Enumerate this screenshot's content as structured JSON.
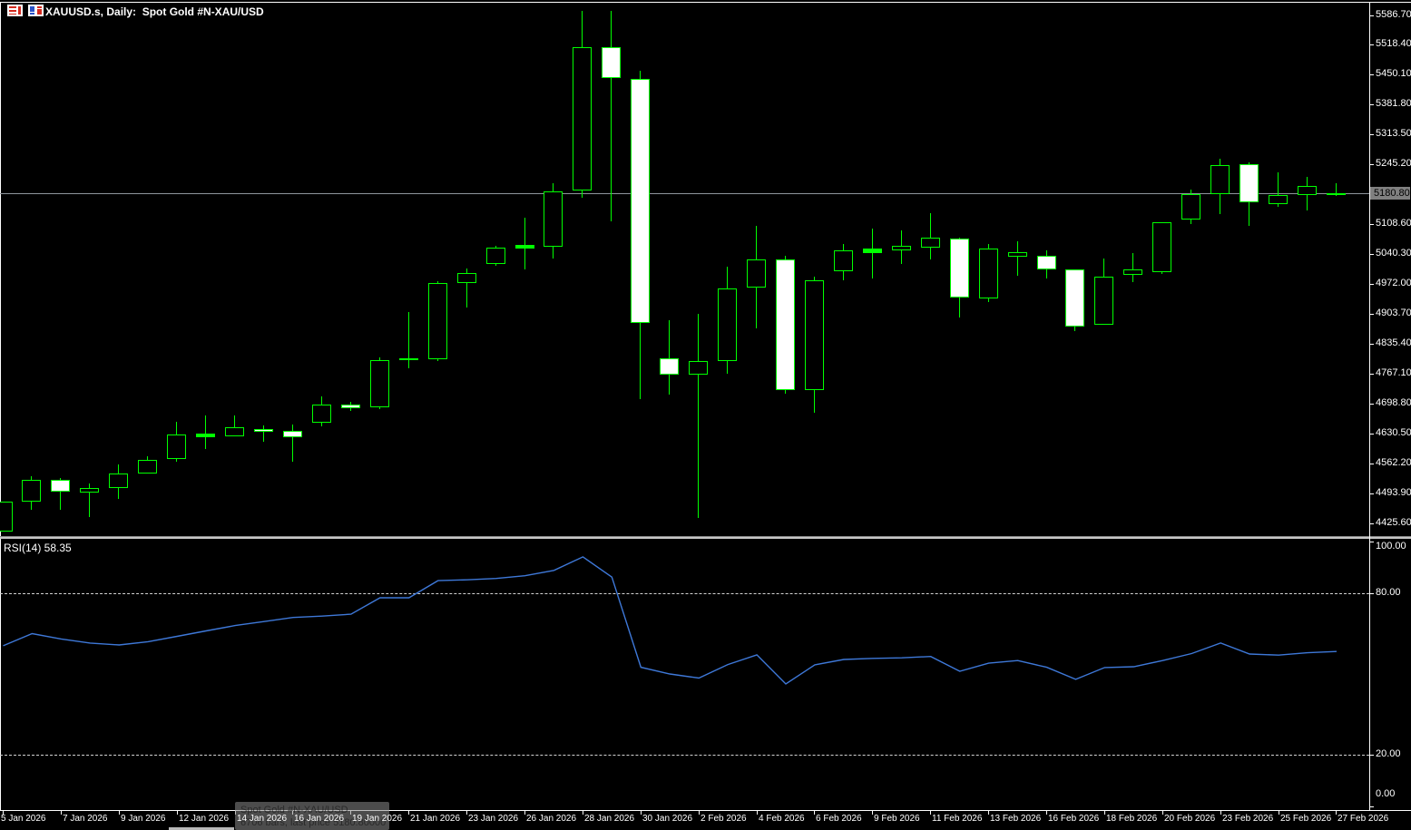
{
  "header": {
    "title": "XAUUSD.s, Daily:  Spot Gold #N-XAU/USD"
  },
  "price_axis": {
    "labels": [
      "5586.70",
      "5518.40",
      "5450.10",
      "5381.80",
      "5313.50",
      "5245.20",
      "5108.60",
      "5040.30",
      "4972.00",
      "4903.70",
      "4835.40",
      "4767.10",
      "4698.80",
      "4630.50",
      "4562.20",
      "4493.90",
      "4425.60"
    ],
    "current_price": "5180.80"
  },
  "time_axis": {
    "labels": [
      "5 Jan 2026",
      "7 Jan 2026",
      "9 Jan 2026",
      "12 Jan 2026",
      "14 Jan 2026",
      "16 Jan 2026",
      "19 Jan 2026",
      "21 Jan 2026",
      "23 Jan 2026",
      "26 Jan 2026",
      "28 Jan 2026",
      "30 Jan 2026",
      "2 Feb 2026",
      "4 Feb 2026",
      "6 Feb 2026",
      "9 Feb 2026",
      "11 Feb 2026",
      "13 Feb 2026",
      "16 Feb 2026",
      "18 Feb 2026",
      "20 Feb 2026",
      "23 Feb 2026",
      "25 Feb 2026",
      "27 Feb 2026"
    ]
  },
  "indicator": {
    "label": "RSI(14) 58.35",
    "levels": [
      {
        "value": 100,
        "label": "100.00"
      },
      {
        "value": 80,
        "label": "80.00"
      },
      {
        "value": 20,
        "label": "20.00"
      },
      {
        "value": 0,
        "label": "0.00"
      }
    ],
    "dashed_levels": [
      80,
      20
    ]
  },
  "tooltip": {
    "line1": "Spot Gold #N-XAU/USD",
    "line2": "6706 bars, last price 5180.80000"
  },
  "colors": {
    "background": "#000000",
    "bull_outline": "#00FF00",
    "bear_fill": "#FFFFFF",
    "rsi_line": "#3E78D8",
    "level_dashed": "#D2D2D2",
    "current_price_line": "#8F959C",
    "current_price_bg": "#808080",
    "axis_text": "#FFFFFF"
  },
  "chart_data": {
    "type": "candlestick",
    "title": "Spot Gold #N-XAU/USD",
    "symbol": "XAUUSD.s",
    "timeframe": "Daily",
    "last_price": 5180.8,
    "ylim_price": [
      4400,
      5616
    ],
    "ylim_rsi": [
      0,
      100
    ],
    "rsi_overbought": 80,
    "rsi_oversold": 20,
    "candles": [
      [
        4407.0,
        4477.3,
        4407.0,
        4477.3
      ],
      [
        4473.4,
        4533.6,
        4457.0,
        4525.0
      ],
      [
        4525.0,
        4529.5,
        4457.0,
        4496.1
      ],
      [
        4494.0,
        4516.8,
        4438.2,
        4506.4
      ],
      [
        4504.4,
        4560.2,
        4479.5,
        4539.5
      ],
      [
        4539.5,
        4578.8,
        4539.5,
        4570.6
      ],
      [
        4570.6,
        4657.5,
        4566.4,
        4628.5
      ],
      [
        4622.3,
        4672.0,
        4593.4,
        4630.6
      ],
      [
        4624.4,
        4672.0,
        4624.4,
        4645.1
      ],
      [
        4641.0,
        4649.2,
        4609.9,
        4634.7
      ],
      [
        4636.8,
        4651.3,
        4566.4,
        4622.3
      ],
      [
        4653.4,
        4715.4,
        4645.1,
        4696.8
      ],
      [
        4696.8,
        4703.0,
        4680.3,
        4688.5
      ],
      [
        4690.5,
        4804.4,
        4684.4,
        4798.2
      ],
      [
        4796.1,
        4907.9,
        4779.5,
        4802.3
      ],
      [
        4798.2,
        4978.3,
        4796.1,
        4974.1
      ],
      [
        4974.1,
        5007.2,
        4918.2,
        4996.9
      ],
      [
        5015.5,
        5059.0,
        5011.4,
        5054.8
      ],
      [
        5050.7,
        5123.1,
        5003.1,
        5061.0
      ],
      [
        5056.9,
        5201.8,
        5030.0,
        5183.2
      ],
      [
        5183.2,
        5595.0,
        5166.6,
        5512.2
      ],
      [
        5512.2,
        5595.0,
        5114.8,
        5439.8
      ],
      [
        5439.8,
        5458.4,
        4707.1,
        4881.0
      ],
      [
        4802.3,
        4889.3,
        4719.5,
        4763.0
      ],
      [
        4763.0,
        4903.7,
        4436.1,
        4796.1
      ],
      [
        4796.1,
        5011.4,
        4767.1,
        4963.7
      ],
      [
        4963.7,
        5106.5,
        4870.6,
        5027.9
      ],
      [
        5027.9,
        5038.2,
        4722.0,
        4727.8
      ],
      [
        4727.8,
        4988.6,
        4676.1,
        4980.3
      ],
      [
        4999.0,
        5063.1,
        4980.3,
        5048.6
      ],
      [
        5042.4,
        5098.3,
        4984.4,
        5052.8
      ],
      [
        5046.6,
        5094.2,
        5017.6,
        5059.0
      ],
      [
        5052.8,
        5133.5,
        5027.9,
        5077.6
      ],
      [
        5075.5,
        5079.6,
        4895.4,
        4938.9
      ],
      [
        4938.9,
        5063.1,
        4928.6,
        5052.8
      ],
      [
        5032.1,
        5069.3,
        4990.6,
        5044.5
      ],
      [
        5036.2,
        5048.6,
        4982.4,
        5003.1
      ],
      [
        5005.2,
        5005.2,
        4862.4,
        4874.8
      ],
      [
        4878.9,
        5030.0,
        4878.9,
        4990.6
      ],
      [
        4992.7,
        5042.4,
        4974.1,
        5005.2
      ],
      [
        4996.9,
        5112.8,
        4994.8,
        5112.8
      ],
      [
        5119.0,
        5187.3,
        5108.6,
        5177.0
      ],
      [
        5174.9,
        5257.7,
        5131.4,
        5243.2
      ],
      [
        5245.2,
        5249.4,
        5104.5,
        5156.3
      ],
      [
        5154.2,
        5226.6,
        5145.9,
        5174.9
      ],
      [
        5174.9,
        5216.3,
        5139.7,
        5195.6
      ],
      [
        5178.0,
        5201.8,
        5172.0,
        5180.8
      ]
    ],
    "rsi_values": [
      60.5,
      65.0,
      63.0,
      61.5,
      60.8,
      62.0,
      64.0,
      66.0,
      68.0,
      69.5,
      71.0,
      71.5,
      72.2,
      78.3,
      78.3,
      84.7,
      85.0,
      85.5,
      86.5,
      88.5,
      93.5,
      86.0,
      52.5,
      50.0,
      48.5,
      53.5,
      57.1,
      46.3,
      53.4,
      55.4,
      55.8,
      56.0,
      56.5,
      51.0,
      54.0,
      55.0,
      52.5,
      48.0,
      52.4,
      52.7,
      55.0,
      57.6,
      61.5,
      57.4,
      57.0,
      57.9,
      58.35
    ]
  }
}
